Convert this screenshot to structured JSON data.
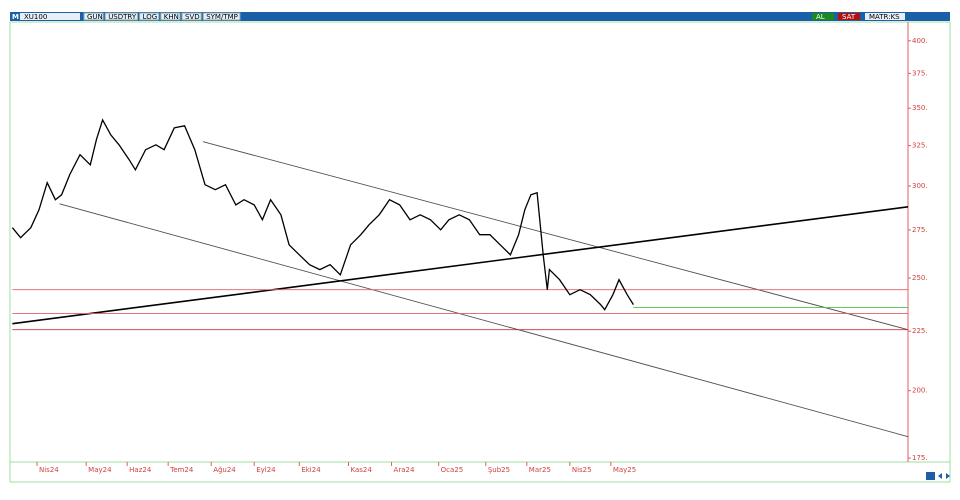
{
  "toolbar": {
    "symbol": "M",
    "ticker": "XU100",
    "buttons": [
      "GUN",
      "USDTRY",
      "LOG",
      "KHN",
      "SVD",
      "SYM/TMP"
    ],
    "right_buttons": [
      "AL",
      "SAT",
      "MATR:KS"
    ]
  },
  "chart_data": {
    "type": "line",
    "log_scale": true,
    "x": [
      -12,
      -8,
      -3,
      1,
      5,
      9,
      12,
      16,
      21,
      26,
      29,
      32,
      36,
      40,
      45,
      48,
      53,
      58,
      62,
      67,
      72,
      77,
      82,
      87,
      92,
      97,
      101,
      106,
      110,
      114,
      119,
      123,
      128,
      133,
      138,
      143,
      148,
      153,
      158,
      162,
      167,
      172,
      177,
      182,
      187,
      192,
      197,
      201,
      206,
      211,
      216,
      221,
      226,
      231,
      235,
      238,
      241,
      244,
      247,
      249,
      250,
      255,
      260,
      265,
      270,
      275,
      277,
      281,
      284,
      288,
      291
    ],
    "series": [
      {
        "name": "XU100",
        "color": "#000000",
        "values": [
          276.2,
          270.8,
          276.2,
          286.2,
          302,
          292,
          294.8,
          306.9,
          319.2,
          312.9,
          328.8,
          342,
          332,
          325.5,
          316,
          309.8,
          322.4,
          325.5,
          322.4,
          336.7,
          338,
          322.4,
          300.8,
          297.8,
          300.8,
          289,
          292,
          289,
          280.6,
          292,
          283.4,
          267,
          261.8,
          256.7,
          254.2,
          256.7,
          251.6,
          267,
          272.4,
          277.8,
          283.4,
          292,
          289,
          280.6,
          283.4,
          280.6,
          275.1,
          280.6,
          283.4,
          280.6,
          272.4,
          272.4,
          267,
          261.8,
          272.4,
          286.2,
          294.8,
          296,
          261.8,
          244.3,
          254.2,
          249.2,
          241.9,
          244.3,
          241.9,
          237.2,
          234.8,
          241.9,
          249.2,
          241.9,
          237.2
        ]
      }
    ],
    "lines": [
      {
        "x": [
          81,
          425
        ],
        "values": [
          327.5,
          225.7
        ],
        "color": "#505050"
      },
      {
        "x": [
          11,
          425
        ],
        "values": [
          289.6,
          182.6
        ],
        "color": "#505050"
      },
      {
        "x": [
          -12,
          425
        ],
        "values": [
          228.4,
          287.9
        ],
        "color": "#000000"
      },
      {
        "x": [
          -12,
          425
        ],
        "values": [
          244.3,
          244.3
        ],
        "color": "#e06060"
      },
      {
        "x": [
          -12,
          425
        ],
        "values": [
          233,
          233
        ],
        "color": "#e06060"
      },
      {
        "x": [
          -12,
          425
        ],
        "values": [
          225.7,
          225.7
        ],
        "color": "#d03030"
      },
      {
        "x": [
          291,
          425
        ],
        "values": [
          235.8,
          235.8
        ],
        "color": "#50c050"
      }
    ],
    "xlim": [
      -12,
      425
    ],
    "xticks": [
      {
        "value": 0,
        "label": "Nis24"
      },
      {
        "value": 24,
        "label": "May24"
      },
      {
        "value": 44,
        "label": "Haz24"
      },
      {
        "value": 64,
        "label": "Tem24"
      },
      {
        "value": 85,
        "label": "Ağu24"
      },
      {
        "value": 106,
        "label": "Eyl24"
      },
      {
        "value": 128,
        "label": "Eki24"
      },
      {
        "value": 152,
        "label": "Kas24"
      },
      {
        "value": 173,
        "label": "Ara24"
      },
      {
        "value": 196,
        "label": "Oca25"
      },
      {
        "value": 219,
        "label": "Şub25"
      },
      {
        "value": 239,
        "label": "Mar25"
      },
      {
        "value": 260,
        "label": "Nis25"
      },
      {
        "value": 280,
        "label": "May25"
      }
    ],
    "ylim": [
      174,
      416
    ],
    "yticks": [
      {
        "value": 400,
        "label": "400."
      },
      {
        "value": 375,
        "label": "375."
      },
      {
        "value": 350,
        "label": "350."
      },
      {
        "value": 325,
        "label": "325."
      },
      {
        "value": 300,
        "label": "300."
      },
      {
        "value": 275,
        "label": "275."
      },
      {
        "value": 250,
        "label": "250."
      },
      {
        "value": 225,
        "label": "225."
      },
      {
        "value": 200,
        "label": "200."
      },
      {
        "value": 175,
        "label": "175."
      }
    ]
  }
}
